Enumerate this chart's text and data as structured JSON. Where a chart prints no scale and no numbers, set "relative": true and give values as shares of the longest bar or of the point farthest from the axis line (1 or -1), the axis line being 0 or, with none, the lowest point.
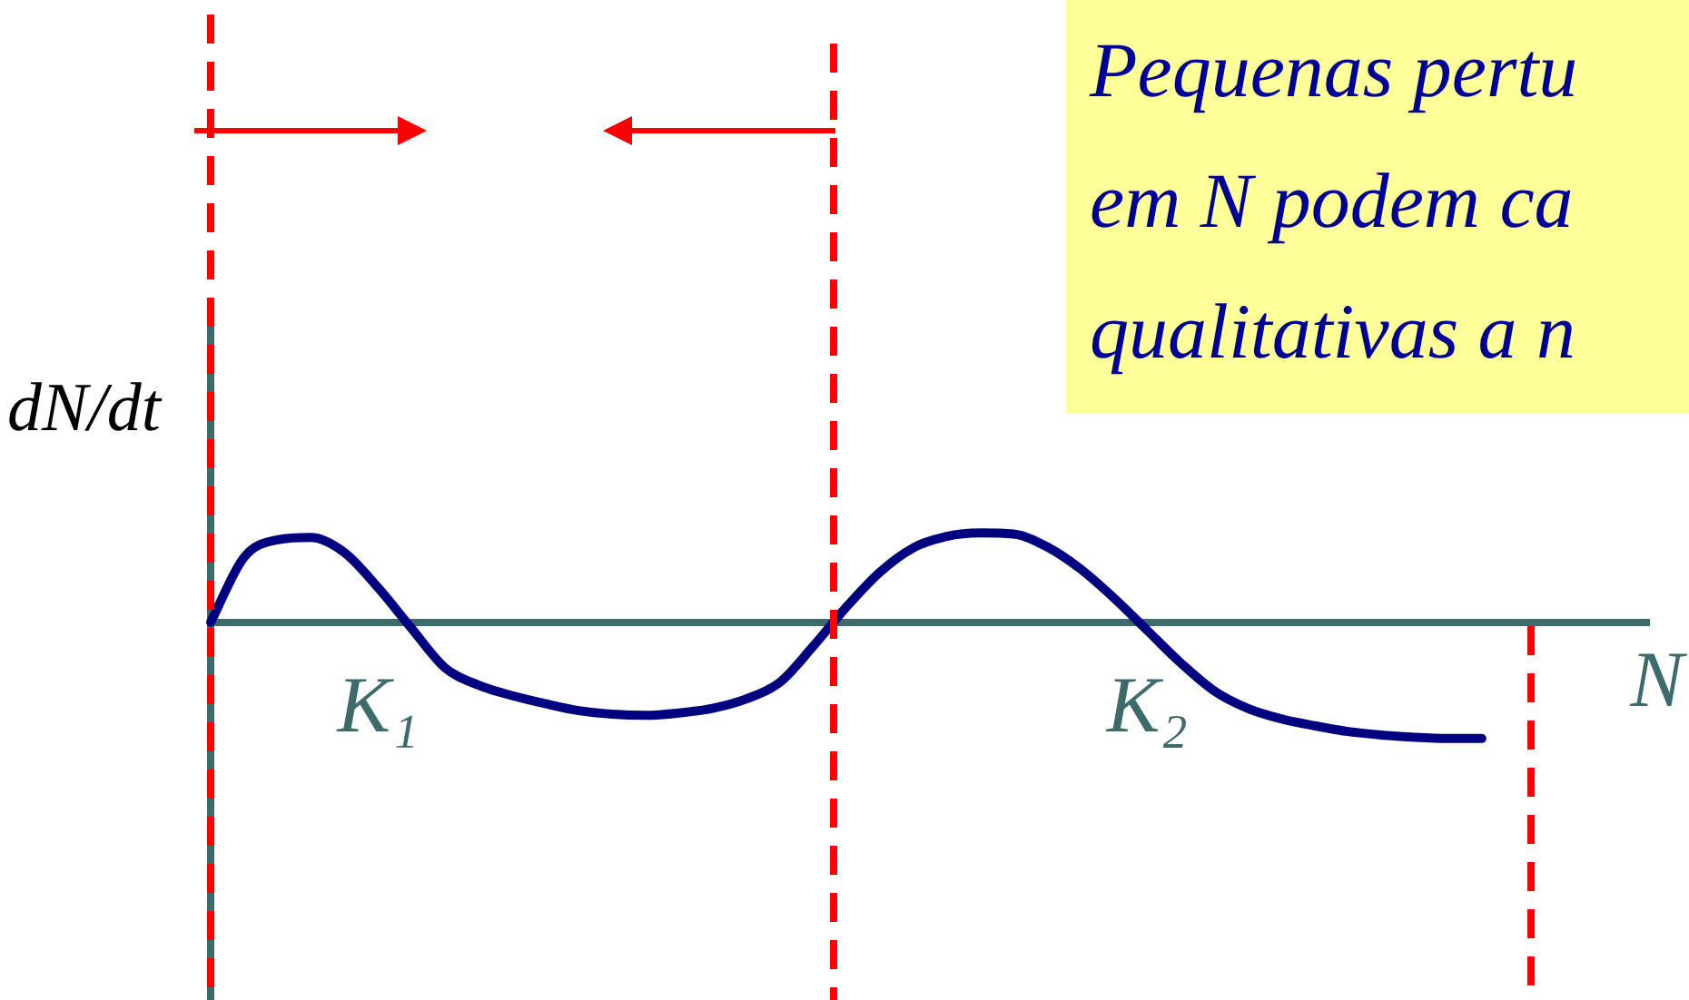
{
  "chart_data": {
    "type": "line",
    "xlabel": "N",
    "ylabel": "dN/dt",
    "annotations": [
      "Pequenas pertu",
      "em N podem ca",
      "qualitativas a n"
    ],
    "categories": [
      null,
      null,
      null,
      null,
      null,
      "K₁",
      null,
      null,
      null,
      null,
      null,
      null,
      null,
      null,
      null,
      null,
      null,
      null,
      null,
      null,
      null,
      null,
      null,
      null,
      null,
      null,
      null,
      null,
      "K₂",
      null,
      null,
      null,
      null,
      null,
      null,
      null,
      null,
      null,
      null,
      null,
      null,
      null,
      null,
      null
    ],
    "series": [
      {
        "color": "#000080",
        "values": [
          0,
          0.56,
          0.71,
          0.73,
          0.6,
          0.3,
          -0.05,
          -0.39,
          -0.54,
          -0.63,
          -0.7,
          -0.76,
          -0.79,
          -0.8,
          -0.78,
          -0.74,
          -0.66,
          -0.52,
          -0.21,
          0.13,
          0.43,
          0.64,
          0.74,
          0.77,
          0.76,
          0.65,
          0.46,
          0.21,
          -0.07,
          -0.35,
          -0.59,
          -0.74,
          -0.83,
          -0.89,
          -0.94,
          -0.97,
          -0.99,
          -1,
          -1,
          null,
          null,
          null,
          null,
          null
        ]
      }
    ],
    "relative": true,
    "tick_labels": "x",
    "grid": false,
    "legend": false,
    "marker": "none",
    "line_style": "solid"
  }
}
